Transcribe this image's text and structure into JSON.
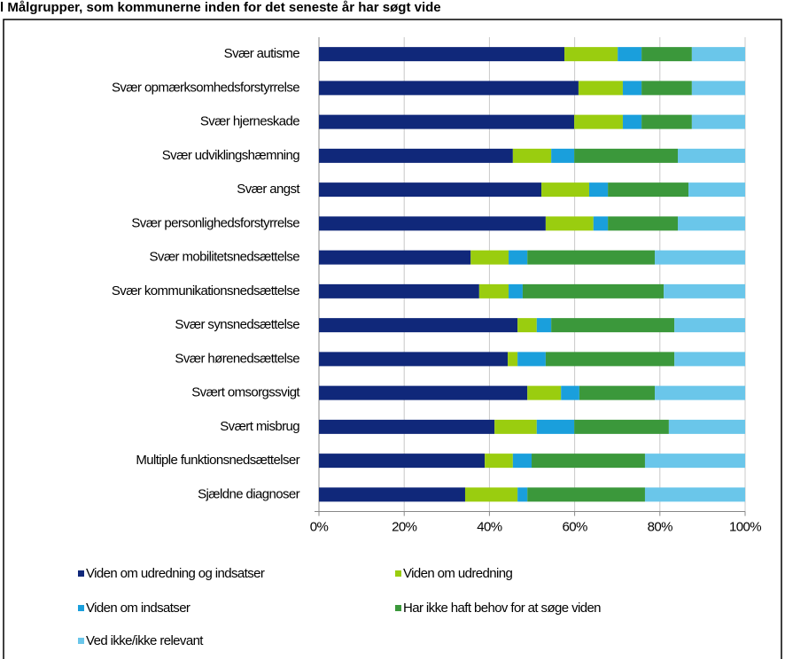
{
  "chart_data": {
    "type": "stacked_bar_horizontal",
    "title": "l Målgrupper, som kommunerne inden for det seneste år har søgt vide",
    "categories": [
      "Svær autisme",
      "Svær opmærksomhedsforstyrrelse",
      "Svær hjerneskade",
      "Svær udviklingshæmning",
      "Svær angst",
      "Svær personlighedsforstyrrelse",
      "Svær mobilitetsnedsættelse",
      "Svær kommunikationsnedsættelse",
      "Svær synsnedsættelse",
      "Svær hørenedsættelse",
      "Svært omsorgssvigt",
      "Svært misbrug",
      "Multiple funktionsnedsættelser",
      "Sjældne diagnoser"
    ],
    "series": [
      {
        "name": "Viden om udredning og indsatser",
        "color": "#10287a",
        "values": [
          57.6,
          60.9,
          59.9,
          45.5,
          52.2,
          53.2,
          35.6,
          37.6,
          46.6,
          44.3,
          48.9,
          41.2,
          38.9,
          34.3
        ]
      },
      {
        "name": "Viden om udredning",
        "color": "#9acd0f",
        "values": [
          12.5,
          10.4,
          11.4,
          9.0,
          11.2,
          11.2,
          8.9,
          6.9,
          4.5,
          2.3,
          7.9,
          9.9,
          6.6,
          12.3
        ]
      },
      {
        "name": "Viden om indsatser",
        "color": "#1a9fdc",
        "values": [
          5.6,
          4.4,
          4.4,
          5.4,
          4.4,
          3.4,
          4.4,
          3.3,
          3.4,
          6.6,
          4.3,
          8.8,
          4.4,
          2.3
        ]
      },
      {
        "name": "Har ikke haft behov for at søge viden",
        "color": "#3b983b",
        "values": [
          11.8,
          11.8,
          11.8,
          24.3,
          18.9,
          16.4,
          29.9,
          33.1,
          28.9,
          30.2,
          17.7,
          22.2,
          26.6,
          27.6
        ]
      },
      {
        "name": "Ved ikke/ikke relevant",
        "color": "#6ac6ea",
        "values": [
          12.5,
          12.5,
          12.5,
          15.8,
          13.3,
          15.8,
          21.2,
          19.1,
          16.6,
          16.6,
          21.2,
          17.9,
          23.5,
          23.5
        ]
      }
    ],
    "xlim": [
      0,
      100
    ],
    "xticks": [
      {
        "value": 0,
        "label": "0%"
      },
      {
        "value": 20,
        "label": "20%"
      },
      {
        "value": 40,
        "label": "40%"
      },
      {
        "value": 60,
        "label": "60%"
      },
      {
        "value": 80,
        "label": "80%"
      },
      {
        "value": 100,
        "label": "100%"
      }
    ],
    "grid": true
  }
}
